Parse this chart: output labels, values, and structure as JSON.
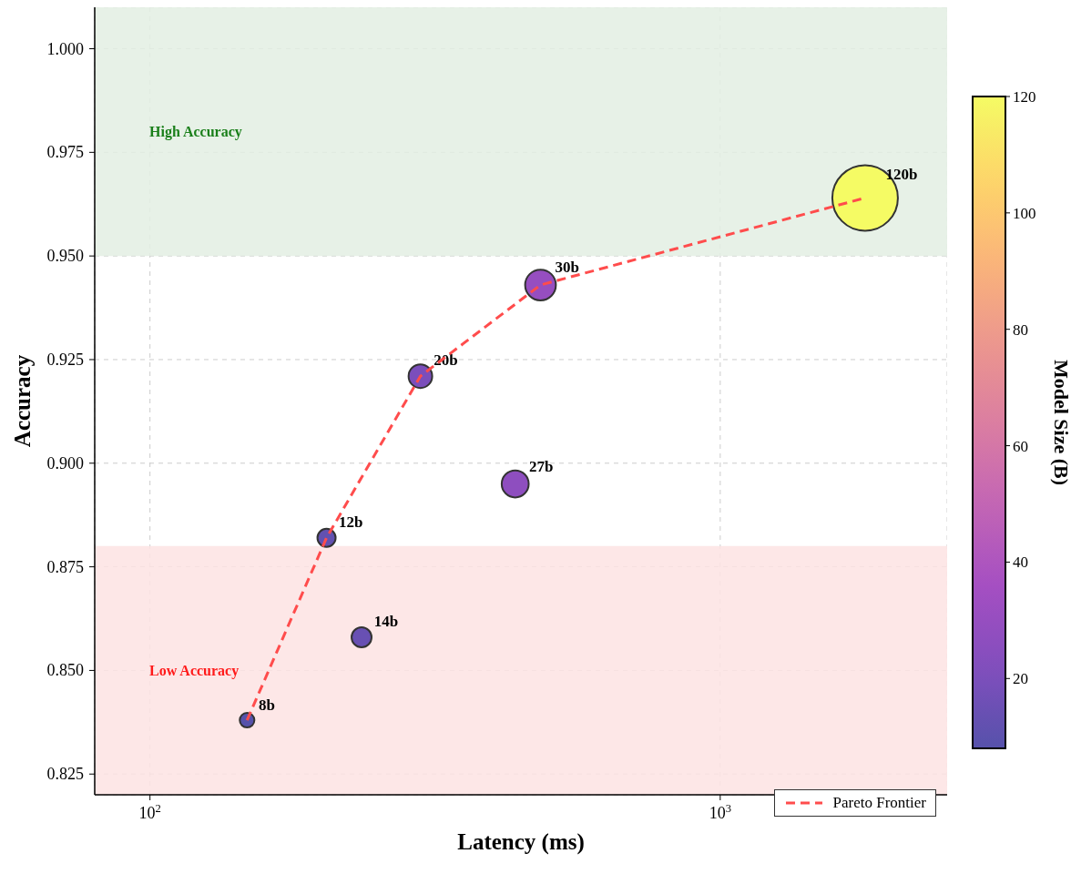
{
  "chart_data": {
    "type": "bubble",
    "xlabel": "Latency (ms)",
    "ylabel": "Accuracy",
    "clabel": "Model Size (B)",
    "log": "x",
    "grid": true,
    "legend": "bottom right",
    "xlim": [
      80,
      2500
    ],
    "ylim": [
      0.82,
      1.01
    ],
    "xticks": [
      {
        "value": 100,
        "label": "10$^{2}$"
      },
      {
        "value": 1000,
        "label": "10$^{3}$"
      }
    ],
    "yticks": [
      0.825,
      {
        "value": 0.85,
        "label": "0.850"
      },
      0.875,
      {
        "value": 0.9,
        "label": "0.900"
      },
      0.925,
      {
        "value": 0.95,
        "label": "0.950"
      },
      0.975,
      {
        "value": 1.0,
        "label": "1.000"
      }
    ],
    "annotations": [
      {
        "text": "8b",
        "x": 148,
        "y": 0.838
      },
      {
        "text": "12b",
        "x": 204,
        "y": 0.882
      },
      {
        "text": "14b",
        "x": 235,
        "y": 0.858
      },
      {
        "text": "20b",
        "x": 298,
        "y": 0.921
      },
      {
        "text": "27b",
        "x": 437,
        "y": 0.895
      },
      {
        "text": "30b",
        "x": 484,
        "y": 0.943
      },
      {
        "text": "120b",
        "x": 1795,
        "y": 0.964
      }
    ],
    "clim": [
      8,
      120
    ],
    "cticks": [
      20,
      40,
      60,
      80,
      100,
      120
    ],
    "bands": [
      {
        "axis": "y",
        "from": 0.95,
        "to": 1.01,
        "label": "High Accuracy",
        "color": "#e3efe3"
      },
      {
        "axis": "y",
        "from": 0.82,
        "to": 0.88,
        "label": "Low Accuracy",
        "color": "#fde3e3"
      }
    ],
    "series": [
      {
        "type": "bubble",
        "x": [
          148,
          204,
          235,
          298,
          437,
          484,
          1795
        ],
        "values": [
          0.838,
          0.882,
          0.858,
          0.921,
          0.895,
          0.943,
          0.964
        ],
        "sizes": [
          0.05,
          0.077,
          0.093,
          0.13,
          0.17,
          0.22,
          1
        ],
        "colors": [
          "#5652ab",
          "#6251b0",
          "#6850b3",
          "#7b4ebb",
          "#8e4ebf",
          "#964ec0",
          "#f5fb64"
        ]
      },
      {
        "type": "line",
        "name": "Pareto Frontier",
        "color": "#ff4c4c",
        "line_style": "dashed",
        "marker": "none",
        "x": [
          148,
          204,
          298,
          484,
          1795
        ],
        "values": [
          0.838,
          0.882,
          0.921,
          0.943,
          0.964
        ]
      }
    ]
  }
}
